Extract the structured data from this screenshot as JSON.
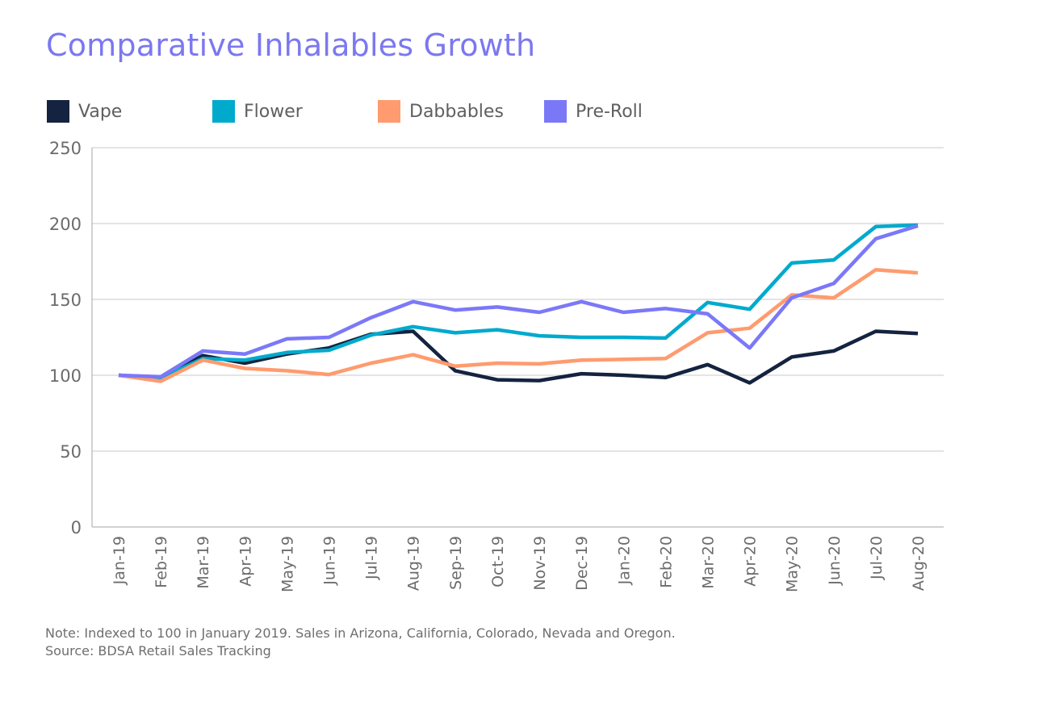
{
  "chart_data": {
    "type": "line",
    "title": "Comparative Inhalables Growth",
    "xlabel": "",
    "ylabel": "",
    "ylim": [
      0,
      250
    ],
    "yticks": [
      0,
      50,
      100,
      150,
      200,
      250
    ],
    "grid": true,
    "legend_position": "top-left",
    "categories": [
      "Jan-19",
      "Feb-19",
      "Mar-19",
      "Apr-19",
      "May-19",
      "Jun-19",
      "Jul-19",
      "Aug-19",
      "Sep-19",
      "Oct-19",
      "Nov-19",
      "Dec-19",
      "Jan-20",
      "Feb-20",
      "Mar-20",
      "Apr-20",
      "May-20",
      "Jun-20",
      "Jul-20",
      "Aug-20"
    ],
    "series": [
      {
        "name": "Vape",
        "color": "#14233f",
        "values": [
          100,
          98,
          113,
          108,
          114,
          118,
          127,
          129,
          103,
          97,
          96.5,
          101,
          100,
          98.5,
          107,
          95,
          112,
          116,
          129,
          127.5
        ]
      },
      {
        "name": "Flower",
        "color": "#00aacd",
        "values": [
          100,
          98,
          111,
          110,
          115,
          116.5,
          126.5,
          132,
          128,
          130,
          126,
          125,
          125,
          124.5,
          148,
          143.5,
          174,
          176,
          198,
          199
        ]
      },
      {
        "name": "Dabbables",
        "color": "#ff9b6e",
        "values": [
          100,
          96,
          110,
          104.5,
          103,
          100.5,
          108,
          113.5,
          106,
          108,
          107.5,
          110,
          110.5,
          111,
          128,
          131,
          153,
          151,
          169.5,
          167.5
        ]
      },
      {
        "name": "Pre-Roll",
        "color": "#7b78f8",
        "values": [
          100,
          99,
          116,
          114,
          124,
          125,
          138,
          148.5,
          143,
          145,
          141.5,
          148.5,
          141.5,
          144,
          140.5,
          118,
          151,
          160.5,
          190,
          198.5
        ]
      }
    ]
  },
  "notes": {
    "line1": "Note: Indexed to 100 in January 2019. Sales in Arizona, California, Colorado, Nevada and Oregon.",
    "line2": "Source: BDSA Retail Sales Tracking"
  }
}
